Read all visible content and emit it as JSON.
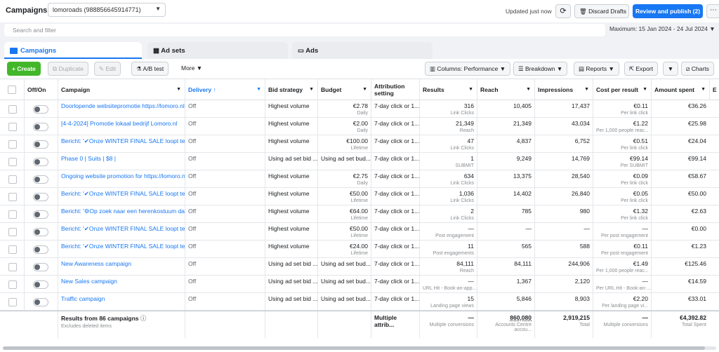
{
  "header": {
    "title": "Campaigns",
    "account": "lomoroads (988856645914771)",
    "updated": "Updated just now",
    "discard": "Discard Drafts",
    "publish": "Review and publish (2)"
  },
  "search": {
    "placeholder": "Search and filter"
  },
  "date_range": "Maximum: 15 Jan 2024 - 24 Jul 2024",
  "tabs": [
    {
      "label": "Campaigns",
      "active": true
    },
    {
      "label": "Ad sets",
      "active": false
    },
    {
      "label": "Ads",
      "active": false
    }
  ],
  "toolbar": {
    "create": "Create",
    "duplicate": "Duplicate",
    "edit": "Edit",
    "ab_test": "A/B test",
    "more": "More",
    "columns": "Columns: Performance",
    "breakdown": "Breakdown",
    "reports": "Reports",
    "export": "Export",
    "charts": "Charts"
  },
  "columns": [
    "Off/On",
    "Campaign",
    "Delivery ↑",
    "Bid strategy",
    "Budget",
    "Attribution setting",
    "Results",
    "Reach",
    "Impressions",
    "Cost per result",
    "Amount spent",
    "E"
  ],
  "rows": [
    {
      "campaign": "Doorlopende websitepromotie https://lomoro.nl/",
      "delivery": "Off",
      "bid": "Highest volume",
      "budget": "€2.78",
      "budget_sub": "Daily",
      "attribution": "7-day click or 1...",
      "results": "316",
      "results_sub": "Link Clicks",
      "reach": "10,405",
      "impressions": "17,437",
      "cpr": "€0.11",
      "cpr_sub": "Per link click",
      "spent": "€36.26"
    },
    {
      "campaign": "[4-4-2024] Promotie lokaal bedrijf Lomoro.nl",
      "delivery": "Off",
      "bid": "Highest volume",
      "budget": "€2.00",
      "budget_sub": "Daily",
      "attribution": "7-day click or 1...",
      "results": "21,349",
      "results_sub": "Reach",
      "reach": "21,349",
      "impressions": "43,034",
      "cpr": "€1.22",
      "cpr_sub": "Per 1,000 people reac...",
      "spent": "€25.98"
    },
    {
      "campaign": "Bericht: '✔Onze WINTER FINAL SALE loopt ten ...",
      "delivery": "Off",
      "bid": "Highest volume",
      "budget": "€100.00",
      "budget_sub": "Lifetime",
      "attribution": "7-day click or 1...",
      "results": "47",
      "results_sub": "Link Clicks",
      "reach": "4,837",
      "impressions": "6,752",
      "cpr": "€0.51",
      "cpr_sub": "Per link click",
      "spent": "€24.04"
    },
    {
      "campaign": "Phase 0 | Suits | $8 |",
      "delivery": "Off",
      "bid": "Using ad set bid ...",
      "budget": "Using ad set bud...",
      "budget_sub": "",
      "attribution": "7-day click or 1...",
      "results": "1",
      "results_sub": "SUBMIT",
      "reach": "9,249",
      "impressions": "14,769",
      "cpr": "€99.14",
      "cpr_sub": "Per SUBMIT",
      "spent": "€99.14"
    },
    {
      "campaign": "Ongoing website promotion for https://lomoro.nl/",
      "delivery": "Off",
      "bid": "Highest volume",
      "budget": "€2.75",
      "budget_sub": "Daily",
      "attribution": "7-day click or 1...",
      "results": "634",
      "results_sub": "Link Clicks",
      "reach": "13,375",
      "impressions": "28,540",
      "cpr": "€0.09",
      "cpr_sub": "Per link click",
      "spent": "€58.67"
    },
    {
      "campaign": "Bericht: '✔Onze WINTER FINAL SALE loopt ten ...",
      "delivery": "Off",
      "bid": "Highest volume",
      "budget": "€50.00",
      "budget_sub": "Lifetime",
      "attribution": "7-day click or 1...",
      "results": "1,036",
      "results_sub": "Link Clicks",
      "reach": "14,402",
      "impressions": "26,840",
      "cpr": "€0.05",
      "cpr_sub": "Per link click",
      "spent": "€50.00"
    },
    {
      "campaign": "Bericht: '⚙Op zoek naar een herenkostuum dat ...",
      "delivery": "Off",
      "bid": "Highest volume",
      "budget": "€64.00",
      "budget_sub": "Lifetime",
      "attribution": "7-day click or 1...",
      "results": "2",
      "results_sub": "Link Clicks",
      "reach": "785",
      "impressions": "980",
      "cpr": "€1.32",
      "cpr_sub": "Per link click",
      "spent": "€2.63"
    },
    {
      "campaign": "Bericht: '✔Onze WINTER FINAL SALE loopt ten ...",
      "delivery": "Off",
      "bid": "Highest volume",
      "budget": "€50.00",
      "budget_sub": "Lifetime",
      "attribution": "7-day click or 1...",
      "results": "—",
      "results_sub": "Post engagement",
      "reach": "—",
      "impressions": "—",
      "cpr": "—",
      "cpr_sub": "Per post engagement",
      "spent": "€0.00"
    },
    {
      "campaign": "Bericht: '✔Onze WINTER FINAL SALE loopt ten ...",
      "delivery": "Off",
      "bid": "Highest volume",
      "budget": "€24.00",
      "budget_sub": "Lifetime",
      "attribution": "7-day click or 1...",
      "results": "11",
      "results_sub": "Post engagements",
      "reach": "565",
      "impressions": "588",
      "cpr": "€0.11",
      "cpr_sub": "Per post engagement",
      "spent": "€1.23"
    },
    {
      "campaign": "New Awareness campaign",
      "delivery": "Off",
      "bid": "Using ad set bid ...",
      "budget": "Using ad set bud...",
      "budget_sub": "",
      "attribution": "7-day click or 1...",
      "results": "84,111",
      "results_sub": "Reach",
      "reach": "84,111",
      "impressions": "244,906",
      "cpr": "€1.49",
      "cpr_sub": "Per 1,000 people reac...",
      "spent": "€125.46"
    },
    {
      "campaign": "New Sales campaign",
      "delivery": "Off",
      "bid": "Using ad set bid ...",
      "budget": "Using ad set bud...",
      "budget_sub": "",
      "attribution": "7-day click or 1...",
      "results": "—",
      "results_sub": "URL Hit - Book-an-app...",
      "reach": "1,367",
      "impressions": "2,120",
      "cpr": "—",
      "cpr_sub": "Per URL Hit - Book-an-...",
      "spent": "€14.59"
    },
    {
      "campaign": "Traffic campaign",
      "delivery": "Off",
      "bid": "Using ad set bid ...",
      "budget": "Using ad set bud...",
      "budget_sub": "",
      "attribution": "7-day click or 1...",
      "results": "15",
      "results_sub": "Landing page views",
      "reach": "5,846",
      "impressions": "8,903",
      "cpr": "€2.20",
      "cpr_sub": "Per landing page vi...",
      "spent": "€33.01"
    }
  ],
  "totals": {
    "label": "Results from 86 campaigns",
    "sub": "Excludes deleted items",
    "attribution": "Multiple attrib...",
    "results": "—",
    "results_sub": "Multiple conversions",
    "reach": "860,080",
    "reach_sub": "Accounts Centre accou...",
    "impressions": "2,919,215",
    "impressions_sub": "Total",
    "cpr": "—",
    "cpr_sub": "Multiple conversions",
    "spent": "€4,392.82",
    "spent_sub": "Total Spent"
  },
  "colors": {
    "accent": "#1877f2",
    "create": "#42b72a"
  }
}
